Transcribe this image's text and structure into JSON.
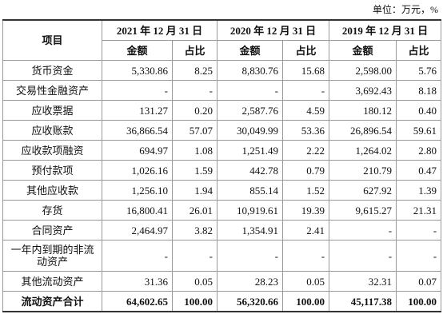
{
  "unit": "单位：万元，%",
  "table": {
    "header": {
      "item": "项目",
      "periods": [
        "2021 年 12 月 31 日",
        "2020 年 12 月 31 日",
        "2019 年 12 月 31 日"
      ],
      "sub": [
        "金额",
        "占比",
        "金额",
        "占比",
        "金额",
        "占比"
      ]
    },
    "rows": [
      [
        "货币资金",
        "5,330.86",
        "8.25",
        "8,830.76",
        "15.68",
        "2,598.00",
        "5.76"
      ],
      [
        "交易性金融资产",
        "-",
        "-",
        "-",
        "-",
        "3,692.43",
        "8.18"
      ],
      [
        "应收票据",
        "131.27",
        "0.20",
        "2,587.76",
        "4.59",
        "180.12",
        "0.40"
      ],
      [
        "应收账款",
        "36,866.54",
        "57.07",
        "30,049.99",
        "53.36",
        "26,896.54",
        "59.61"
      ],
      [
        "应收款项融资",
        "694.97",
        "1.08",
        "1,251.49",
        "2.22",
        "1,264.02",
        "2.80"
      ],
      [
        "预付款项",
        "1,026.16",
        "1.59",
        "442.78",
        "0.79",
        "210.79",
        "0.47"
      ],
      [
        "其他应收款",
        "1,256.10",
        "1.94",
        "855.14",
        "1.52",
        "627.92",
        "1.39"
      ],
      [
        "存货",
        "16,800.41",
        "26.01",
        "10,919.61",
        "19.39",
        "9,615.27",
        "21.31"
      ],
      [
        "合同资产",
        "2,464.97",
        "3.82",
        "1,354.91",
        "2.41",
        "-",
        "-"
      ],
      [
        "一年内到期的非流动资产",
        "-",
        "-",
        "-",
        "-",
        "-",
        "-"
      ],
      [
        "其他流动资产",
        "31.36",
        "0.05",
        "28.23",
        "0.05",
        "32.31",
        "0.07"
      ],
      [
        "流动资产合计",
        "64,602.65",
        "100.00",
        "56,320.66",
        "100.00",
        "45,117.38",
        "100.00"
      ]
    ]
  }
}
